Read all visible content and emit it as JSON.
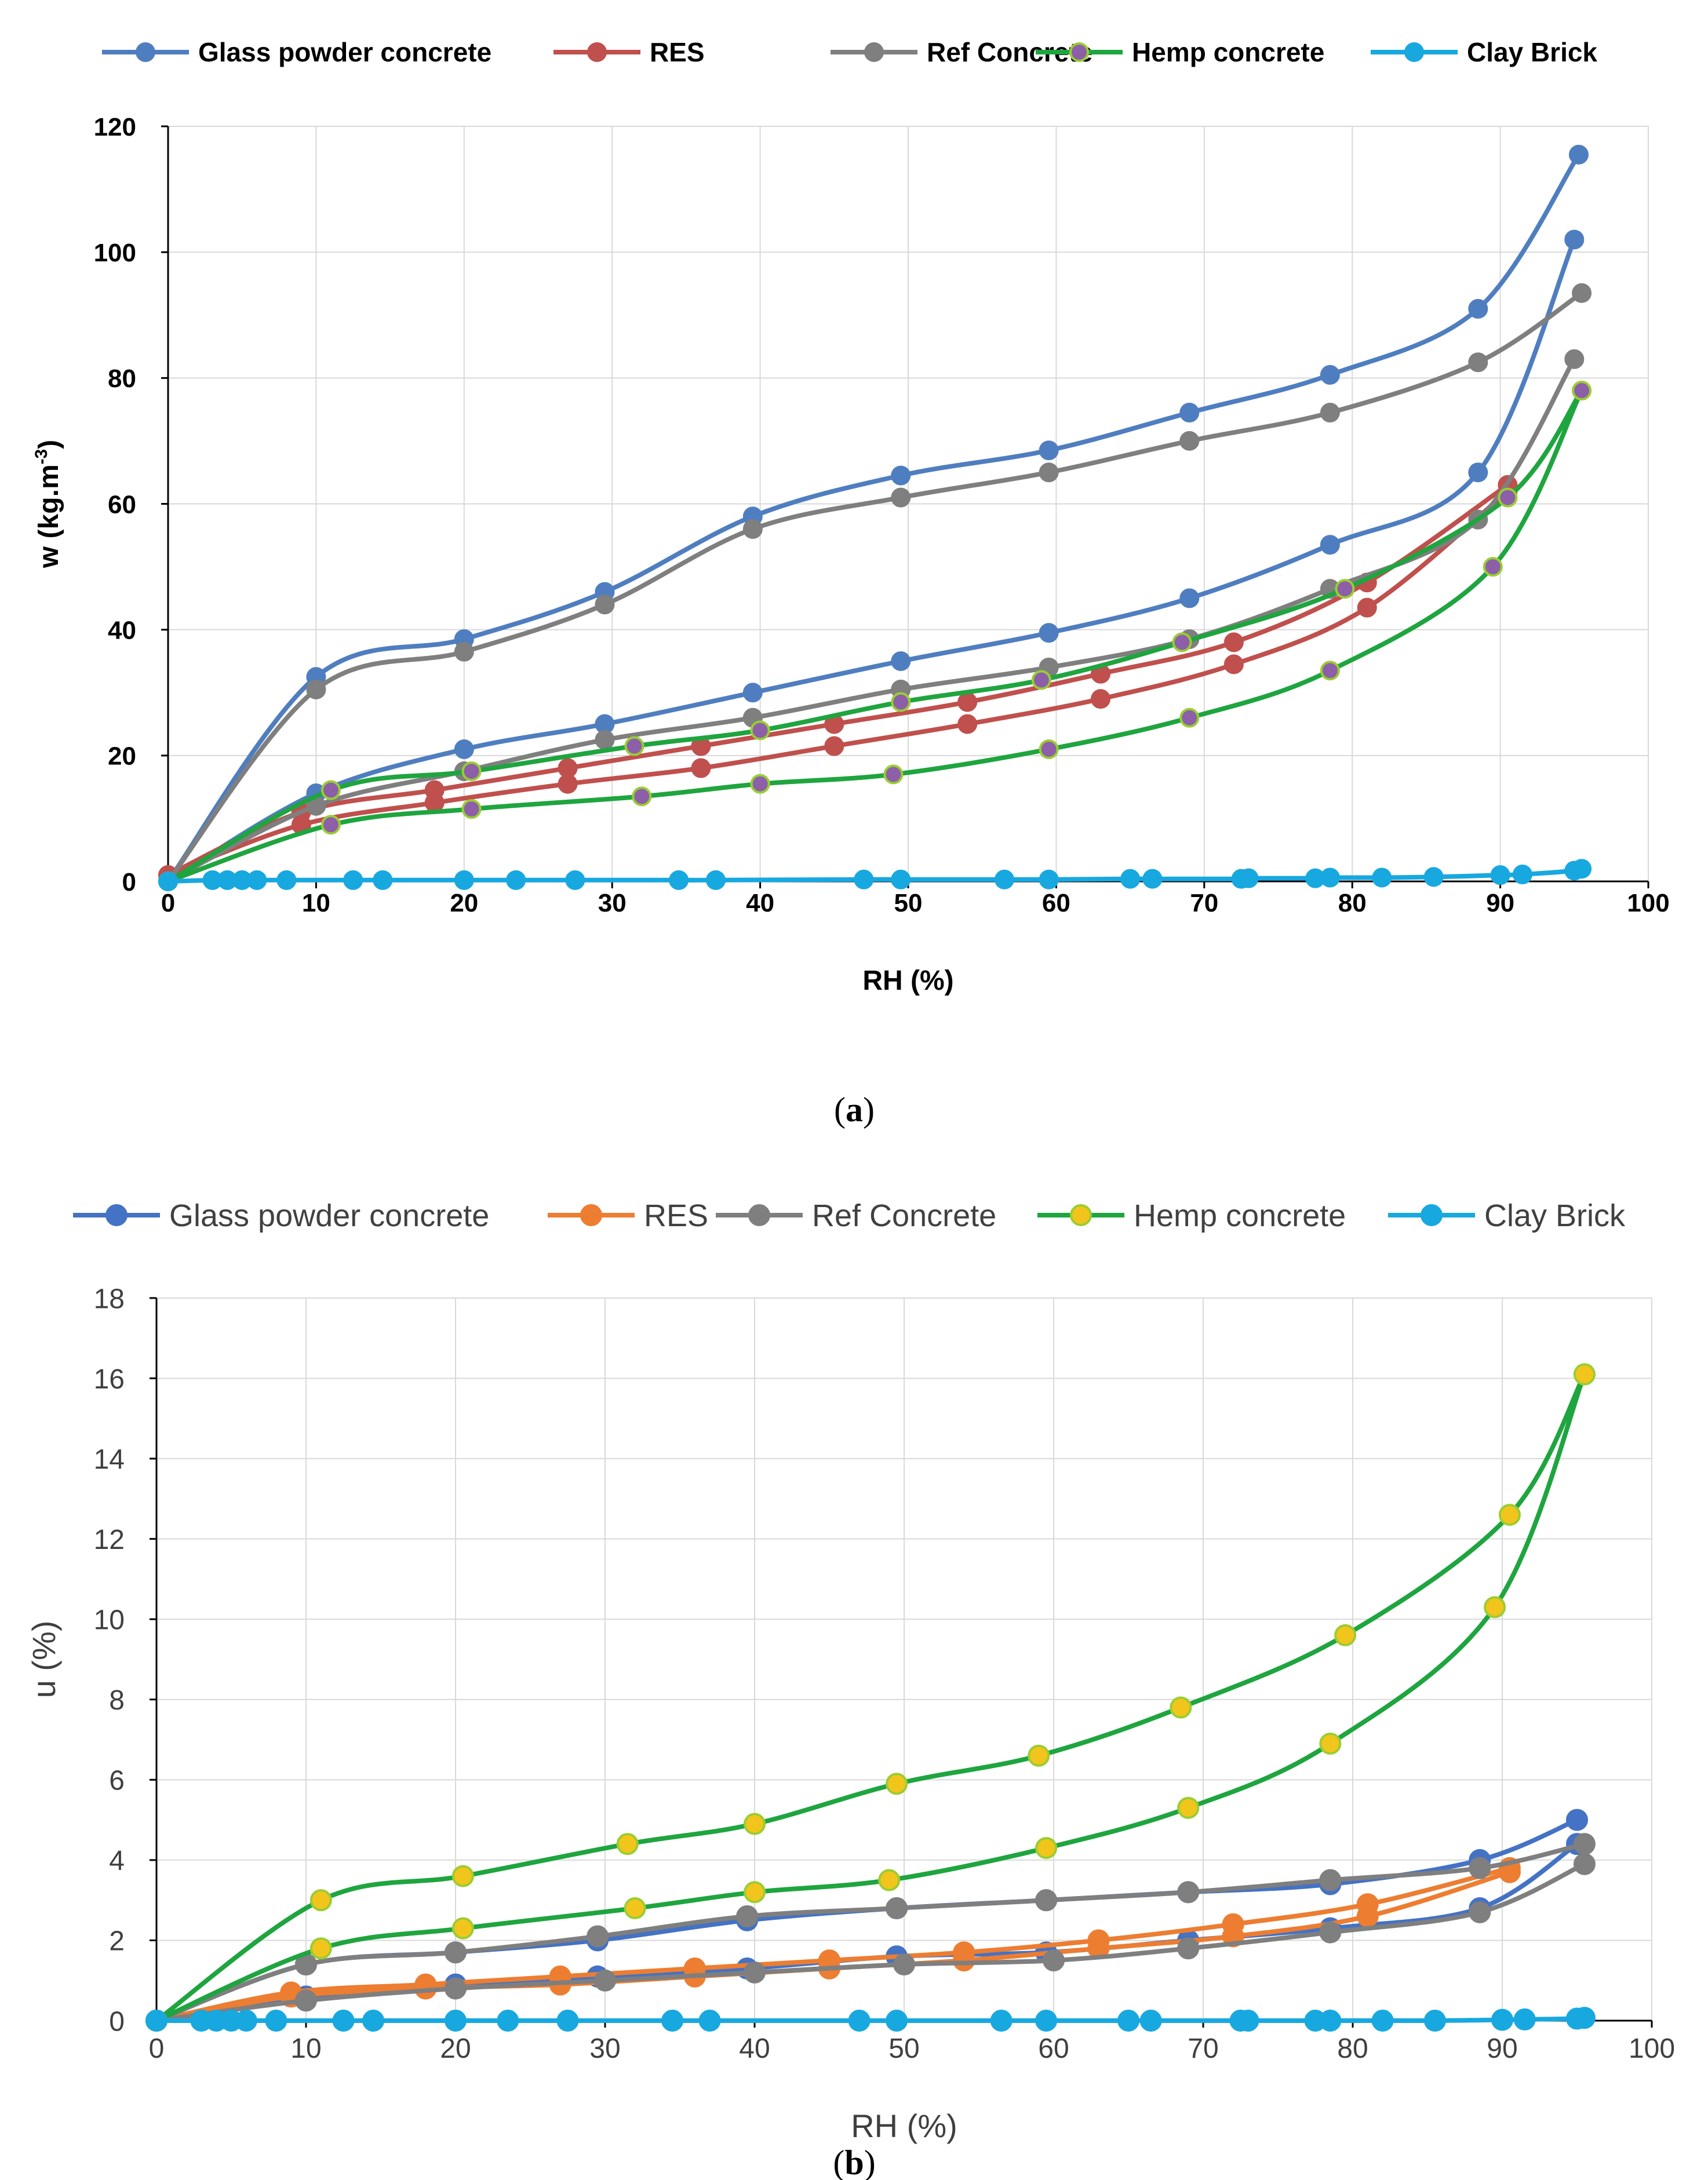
{
  "chart_data": [
    {
      "type": "line",
      "panel_label": "(a)",
      "panel_label_bold": "a",
      "xlabel": "RH (%)",
      "ylabel": "w (kg.m",
      "ylabel_sup": "-3",
      "ylabel_close": ")",
      "xlim": [
        0,
        100
      ],
      "ylim": [
        0,
        120
      ],
      "xticks": [
        0,
        10,
        20,
        30,
        40,
        50,
        60,
        70,
        80,
        90,
        100
      ],
      "yticks": [
        0,
        20,
        40,
        60,
        80,
        100,
        120
      ],
      "grid": true,
      "legend_position": "top",
      "series": [
        {
          "name": "Glass powder concrete",
          "color": "#4F7EC0",
          "marker_fill": "#4F7EC0",
          "marker_edge": "#4F7EC0",
          "branches": [
            {
              "x": [
                0,
                10,
                20,
                29.5,
                39.5,
                49.5,
                59.5,
                69,
                78.5,
                88.5,
                95
              ],
              "y": [
                0,
                14,
                21,
                25,
                30,
                35,
                39.5,
                45,
                53.5,
                65,
                102
              ]
            },
            {
              "x": [
                95.3,
                88.5,
                78.5,
                69,
                59.5,
                49.5,
                39.5,
                29.5,
                20,
                10,
                0
              ],
              "y": [
                115.5,
                91,
                80.5,
                74.5,
                68.5,
                64.5,
                58,
                46,
                38.5,
                32.5,
                0
              ]
            }
          ]
        },
        {
          "name": "RES",
          "color": "#C0504D",
          "marker_fill": "#C0504D",
          "marker_edge": "#C0504D",
          "branches": [
            {
              "x": [
                0,
                9,
                18,
                27,
                36,
                45,
                54,
                63,
                72,
                81,
                90.5
              ],
              "y": [
                1,
                9,
                12.5,
                15.5,
                18,
                21.5,
                25,
                29,
                34.5,
                43.5,
                62
              ]
            },
            {
              "x": [
                90.5,
                81,
                72,
                63,
                54,
                45,
                36,
                27,
                18,
                9,
                0
              ],
              "y": [
                63,
                47.5,
                38,
                33,
                28.5,
                25,
                21.5,
                18,
                14.5,
                11,
                1
              ]
            }
          ]
        },
        {
          "name": "Ref Concrete",
          "color": "#7F7F7F",
          "marker_fill": "#7F7F7F",
          "marker_edge": "#7F7F7F",
          "branches": [
            {
              "x": [
                0,
                10,
                20,
                29.5,
                39.5,
                49.5,
                59.5,
                69,
                78.5,
                88.5,
                95
              ],
              "y": [
                0,
                12,
                17.5,
                22.5,
                26,
                30.5,
                34,
                38.5,
                46.5,
                57.5,
                83
              ]
            },
            {
              "x": [
                95.5,
                88.5,
                78.5,
                69,
                59.5,
                49.5,
                39.5,
                29.5,
                20,
                10,
                0
              ],
              "y": [
                93.5,
                82.5,
                74.5,
                70,
                65,
                61,
                56,
                44,
                36.5,
                30.5,
                0
              ]
            }
          ]
        },
        {
          "name": "Hemp concrete",
          "color": "#1FA53F",
          "marker_fill": "#8C5FA8",
          "marker_edge": "#9ACD32",
          "branches": [
            {
              "x": [
                0,
                11,
                20.5,
                32,
                40,
                49,
                59.5,
                69,
                78.5,
                89.5,
                95.5
              ],
              "y": [
                0,
                9,
                11.5,
                13.5,
                15.5,
                17,
                21,
                26,
                33.5,
                50,
                78
              ]
            },
            {
              "x": [
                95.5,
                90.5,
                79.5,
                68.5,
                59,
                49.5,
                40,
                31.5,
                20.5,
                11,
                0
              ],
              "y": [
                78,
                61,
                46.5,
                38,
                32,
                28.5,
                24,
                21.5,
                17.5,
                14.5,
                0
              ]
            }
          ]
        },
        {
          "name": "Clay Brick",
          "color": "#18A8E0",
          "marker_fill": "#18A8E0",
          "marker_edge": "#18A8E0",
          "branches": [
            {
              "x": [
                0,
                3,
                4,
                5,
                6,
                8,
                12.5,
                14.5,
                20,
                23.5,
                27.5,
                34.5,
                37,
                47,
                49.5,
                56.5,
                59.5,
                65,
                66.5,
                72.5,
                73,
                77.5,
                78.5,
                82,
                85.5,
                90,
                91.5,
                95,
                95.5
              ],
              "y": [
                0,
                0.2,
                0.2,
                0.2,
                0.2,
                0.2,
                0.2,
                0.2,
                0.2,
                0.2,
                0.2,
                0.2,
                0.2,
                0.3,
                0.3,
                0.3,
                0.3,
                0.4,
                0.4,
                0.4,
                0.5,
                0.5,
                0.6,
                0.6,
                0.7,
                1.0,
                1.1,
                1.7,
                2.0
              ]
            }
          ]
        }
      ]
    },
    {
      "type": "line",
      "panel_label": "(b)",
      "panel_label_bold": "b",
      "xlabel": "RH (%)",
      "ylabel": "u (%)",
      "xlim": [
        0,
        100
      ],
      "ylim": [
        0,
        18
      ],
      "xticks": [
        0,
        10,
        20,
        30,
        40,
        50,
        60,
        70,
        80,
        90,
        100
      ],
      "yticks": [
        0,
        2,
        4,
        6,
        8,
        10,
        12,
        14,
        16,
        18
      ],
      "grid": true,
      "legend_position": "top",
      "series": [
        {
          "name": "Glass powder concrete",
          "color": "#4472C4",
          "marker_fill": "#4472C4",
          "marker_edge": "#4472C4",
          "branches": [
            {
              "x": [
                0,
                10,
                20,
                29.5,
                39.5,
                49.5,
                59.5,
                69,
                78.5,
                88.5,
                95
              ],
              "y": [
                0,
                0.6,
                0.9,
                1.1,
                1.3,
                1.6,
                1.7,
                2.0,
                2.3,
                2.8,
                4.4
              ]
            },
            {
              "x": [
                95,
                88.5,
                78.5,
                69,
                59.5,
                49.5,
                39.5,
                29.5,
                20,
                10,
                0
              ],
              "y": [
                5.0,
                4.0,
                3.4,
                3.2,
                3.0,
                2.8,
                2.5,
                2.0,
                1.7,
                1.4,
                0
              ]
            }
          ]
        },
        {
          "name": "RES",
          "color": "#ED7D31",
          "marker_fill": "#ED7D31",
          "marker_edge": "#ED7D31",
          "branches": [
            {
              "x": [
                0,
                9,
                18,
                27,
                36,
                45,
                54,
                63,
                72,
                81,
                90.5
              ],
              "y": [
                0,
                0.6,
                0.8,
                0.9,
                1.1,
                1.3,
                1.5,
                1.8,
                2.1,
                2.6,
                3.7
              ]
            },
            {
              "x": [
                90.5,
                81,
                72,
                63,
                54,
                45,
                36,
                27,
                18,
                9,
                0
              ],
              "y": [
                3.8,
                2.9,
                2.4,
                2.0,
                1.7,
                1.5,
                1.3,
                1.1,
                0.9,
                0.7,
                0
              ]
            }
          ]
        },
        {
          "name": "Ref Concrete",
          "color": "#7F7F7F",
          "marker_fill": "#7F7F7F",
          "marker_edge": "#7F7F7F",
          "branches": [
            {
              "x": [
                0,
                10,
                20,
                30,
                40,
                50,
                60,
                69,
                78.5,
                88.5,
                95.5
              ],
              "y": [
                0,
                0.5,
                0.8,
                1.0,
                1.2,
                1.4,
                1.5,
                1.8,
                2.2,
                2.7,
                3.9
              ]
            },
            {
              "x": [
                95.5,
                88.5,
                78.5,
                69,
                59.5,
                49.5,
                39.5,
                29.5,
                20,
                10,
                0
              ],
              "y": [
                4.4,
                3.8,
                3.5,
                3.2,
                3.0,
                2.8,
                2.6,
                2.1,
                1.7,
                1.4,
                0
              ]
            }
          ]
        },
        {
          "name": "Hemp concrete",
          "color": "#1FA53F",
          "marker_fill": "#F2C51C",
          "marker_edge": "#9ACD32",
          "branches": [
            {
              "x": [
                0,
                11,
                20.5,
                32,
                40,
                49,
                59.5,
                69,
                78.5,
                89.5,
                95.5
              ],
              "y": [
                0,
                1.8,
                2.3,
                2.8,
                3.2,
                3.5,
                4.3,
                5.3,
                6.9,
                10.3,
                16.1
              ]
            },
            {
              "x": [
                95.5,
                90.5,
                79.5,
                68.5,
                59,
                49.5,
                40,
                31.5,
                20.5,
                11,
                0
              ],
              "y": [
                16.1,
                12.6,
                9.6,
                7.8,
                6.6,
                5.9,
                4.9,
                4.4,
                3.6,
                3.0,
                0
              ]
            }
          ]
        },
        {
          "name": "Clay Brick",
          "color": "#18A8E0",
          "marker_fill": "#18A8E0",
          "marker_edge": "#18A8E0",
          "branches": [
            {
              "x": [
                0,
                3,
                4,
                5,
                6,
                8,
                12.5,
                14.5,
                20,
                23.5,
                27.5,
                34.5,
                37,
                47,
                49.5,
                56.5,
                59.5,
                65,
                66.5,
                72.5,
                73,
                77.5,
                78.5,
                82,
                85.5,
                90,
                91.5,
                95,
                95.5
              ],
              "y": [
                0,
                0,
                0,
                0,
                0,
                0,
                0,
                0,
                0,
                0,
                0,
                0,
                0,
                0,
                0,
                0,
                0,
                0,
                0,
                0,
                0,
                0,
                0,
                0,
                0,
                0.02,
                0.03,
                0.05,
                0.07
              ]
            }
          ]
        }
      ]
    }
  ]
}
